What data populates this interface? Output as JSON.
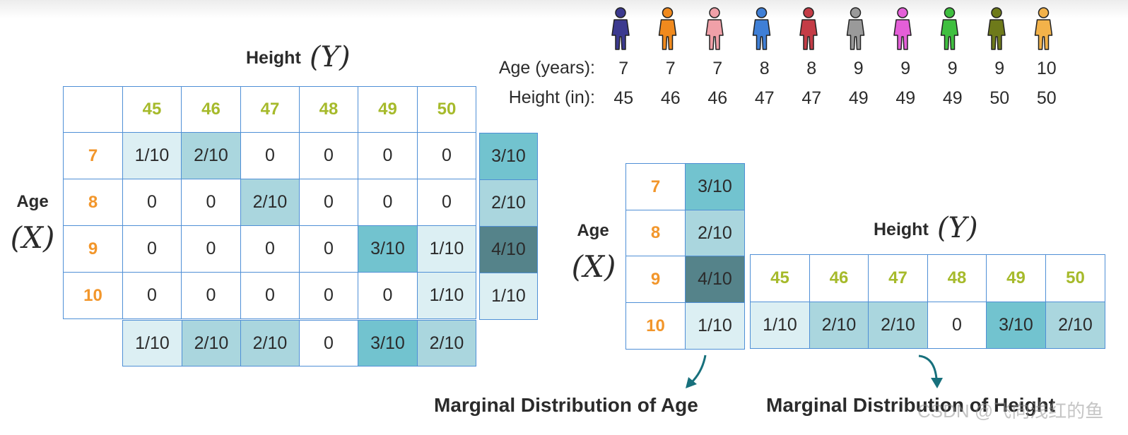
{
  "joint": {
    "height_title": "Height",
    "height_var": "(Y)",
    "age_title": "Age",
    "age_var": "(X)",
    "heights": [
      "45",
      "46",
      "47",
      "48",
      "49",
      "50"
    ],
    "ages": [
      "7",
      "8",
      "9",
      "10"
    ],
    "cells": [
      [
        "1/10",
        "2/10",
        "0",
        "0",
        "0",
        "0"
      ],
      [
        "0",
        "0",
        "2/10",
        "0",
        "0",
        "0"
      ],
      [
        "0",
        "0",
        "0",
        "0",
        "3/10",
        "1/10"
      ],
      [
        "0",
        "0",
        "0",
        "0",
        "0",
        "1/10"
      ]
    ],
    "row_marginals": [
      "3/10",
      "2/10",
      "4/10",
      "1/10"
    ],
    "col_marginals": [
      "1/10",
      "2/10",
      "2/10",
      "0",
      "3/10",
      "2/10"
    ]
  },
  "dataset": {
    "figure_colors": [
      "#3c3a8f",
      "#f08a1e",
      "#f0a0a8",
      "#3f7fd6",
      "#c43c46",
      "#9a9a9a",
      "#e45fd8",
      "#3fbf3f",
      "#6e7a1a",
      "#f2b24a"
    ],
    "age_label": "Age (years):",
    "height_label": "Height (in):",
    "ages": [
      "7",
      "7",
      "7",
      "8",
      "8",
      "9",
      "9",
      "9",
      "9",
      "10"
    ],
    "heights": [
      "45",
      "46",
      "46",
      "47",
      "47",
      "49",
      "49",
      "49",
      "50",
      "50"
    ]
  },
  "marginal_age": {
    "age_title": "Age",
    "age_var": "(X)",
    "ages": [
      "7",
      "8",
      "9",
      "10"
    ],
    "values": [
      "3/10",
      "2/10",
      "4/10",
      "1/10"
    ],
    "caption": "Marginal Distribution of Age"
  },
  "marginal_height": {
    "height_title": "Height",
    "height_var": "(Y)",
    "heights": [
      "45",
      "46",
      "47",
      "48",
      "49",
      "50"
    ],
    "values": [
      "1/10",
      "2/10",
      "2/10",
      "0",
      "3/10",
      "2/10"
    ],
    "caption": "Marginal Distribution of Height"
  },
  "watermark": "CSDN @飞向浅红的鱼"
}
